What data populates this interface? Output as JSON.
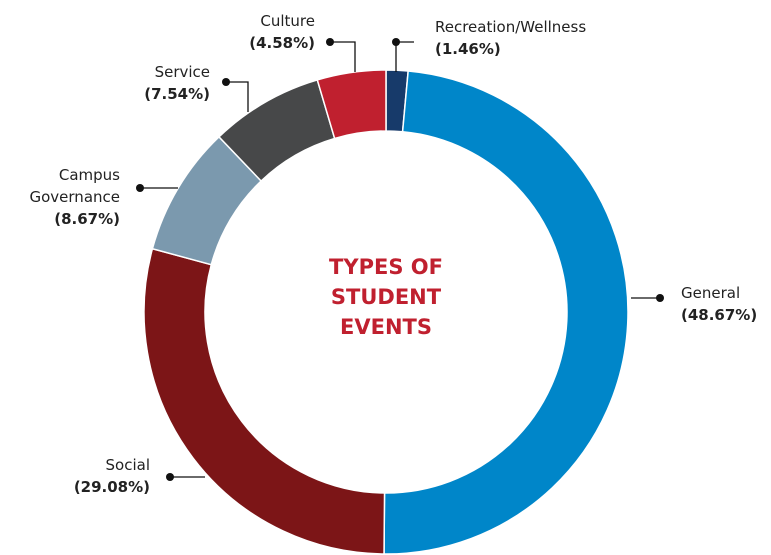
{
  "chart_data": {
    "type": "donut",
    "title": "TYPES OF STUDENT EVENTS",
    "categories": [
      "Recreation/Wellness",
      "General",
      "Social",
      "Campus Governance",
      "Service",
      "Culture"
    ],
    "values": [
      1.46,
      48.67,
      29.08,
      8.67,
      7.54,
      4.58
    ],
    "value_labels": [
      "(1.46%)",
      "(48.67%)",
      "(29.08%)",
      "(8.67%)",
      "(7.54%)",
      "(4.58%)"
    ],
    "colors": [
      "#173a6a",
      "#0086c9",
      "#7c1517",
      "#7b99ae",
      "#474849",
      "#c0202f"
    ]
  }
}
